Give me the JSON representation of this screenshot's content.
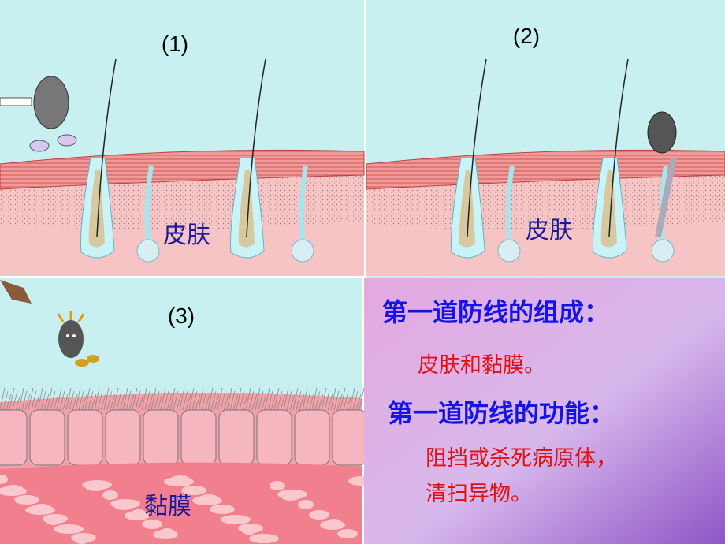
{
  "panels": [
    {
      "label": "(1)",
      "caption": "皮肤"
    },
    {
      "label": "(2)",
      "caption": "皮肤"
    },
    {
      "label": "(3)",
      "caption": "黏膜"
    }
  ],
  "text_box": {
    "heading1": "第一道防线的组成：",
    "body1": "皮肤和黏膜。",
    "heading2": "第一道防线的功能：",
    "body2": [
      "阻挡或杀死病原体，",
      "清扫异物。"
    ]
  }
}
